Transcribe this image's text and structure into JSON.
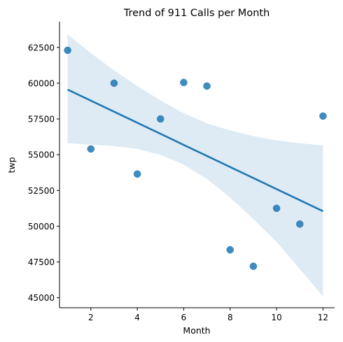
{
  "chart_data": {
    "type": "scatter",
    "title": "Trend of 911 Calls per Month",
    "xlabel": "Month",
    "ylabel": "twp",
    "xlim": [
      0.65,
      12.5
    ],
    "ylim": [
      44300,
      64300
    ],
    "xticks": [
      2,
      4,
      6,
      8,
      10,
      12
    ],
    "yticks": [
      45000,
      47500,
      50000,
      52500,
      55000,
      57500,
      60000,
      62500
    ],
    "grid": false,
    "points": [
      {
        "x": 1,
        "y": 62300
      },
      {
        "x": 2,
        "y": 55400
      },
      {
        "x": 3,
        "y": 60000
      },
      {
        "x": 4,
        "y": 53650
      },
      {
        "x": 5,
        "y": 57500
      },
      {
        "x": 6,
        "y": 60050
      },
      {
        "x": 7,
        "y": 59800
      },
      {
        "x": 8,
        "y": 48350
      },
      {
        "x": 9,
        "y": 47200
      },
      {
        "x": 10,
        "y": 51250
      },
      {
        "x": 11,
        "y": 50150
      },
      {
        "x": 12,
        "y": 57700
      }
    ],
    "regression": {
      "x": [
        1,
        12
      ],
      "y": [
        59550,
        51050
      ]
    },
    "confidence_band": {
      "x": [
        1,
        2,
        3,
        4,
        5,
        6,
        7,
        8,
        9,
        10,
        11,
        12
      ],
      "upper": [
        63400,
        62100,
        60900,
        59800,
        58800,
        57900,
        57200,
        56700,
        56300,
        56000,
        55800,
        55650
      ],
      "lower": [
        55800,
        55700,
        55600,
        55400,
        55000,
        54300,
        53300,
        52000,
        50500,
        48900,
        47000,
        45100
      ]
    },
    "colors": {
      "points": "#1f77b4",
      "line": "#1f77b4",
      "band": "#1f77b4"
    }
  }
}
